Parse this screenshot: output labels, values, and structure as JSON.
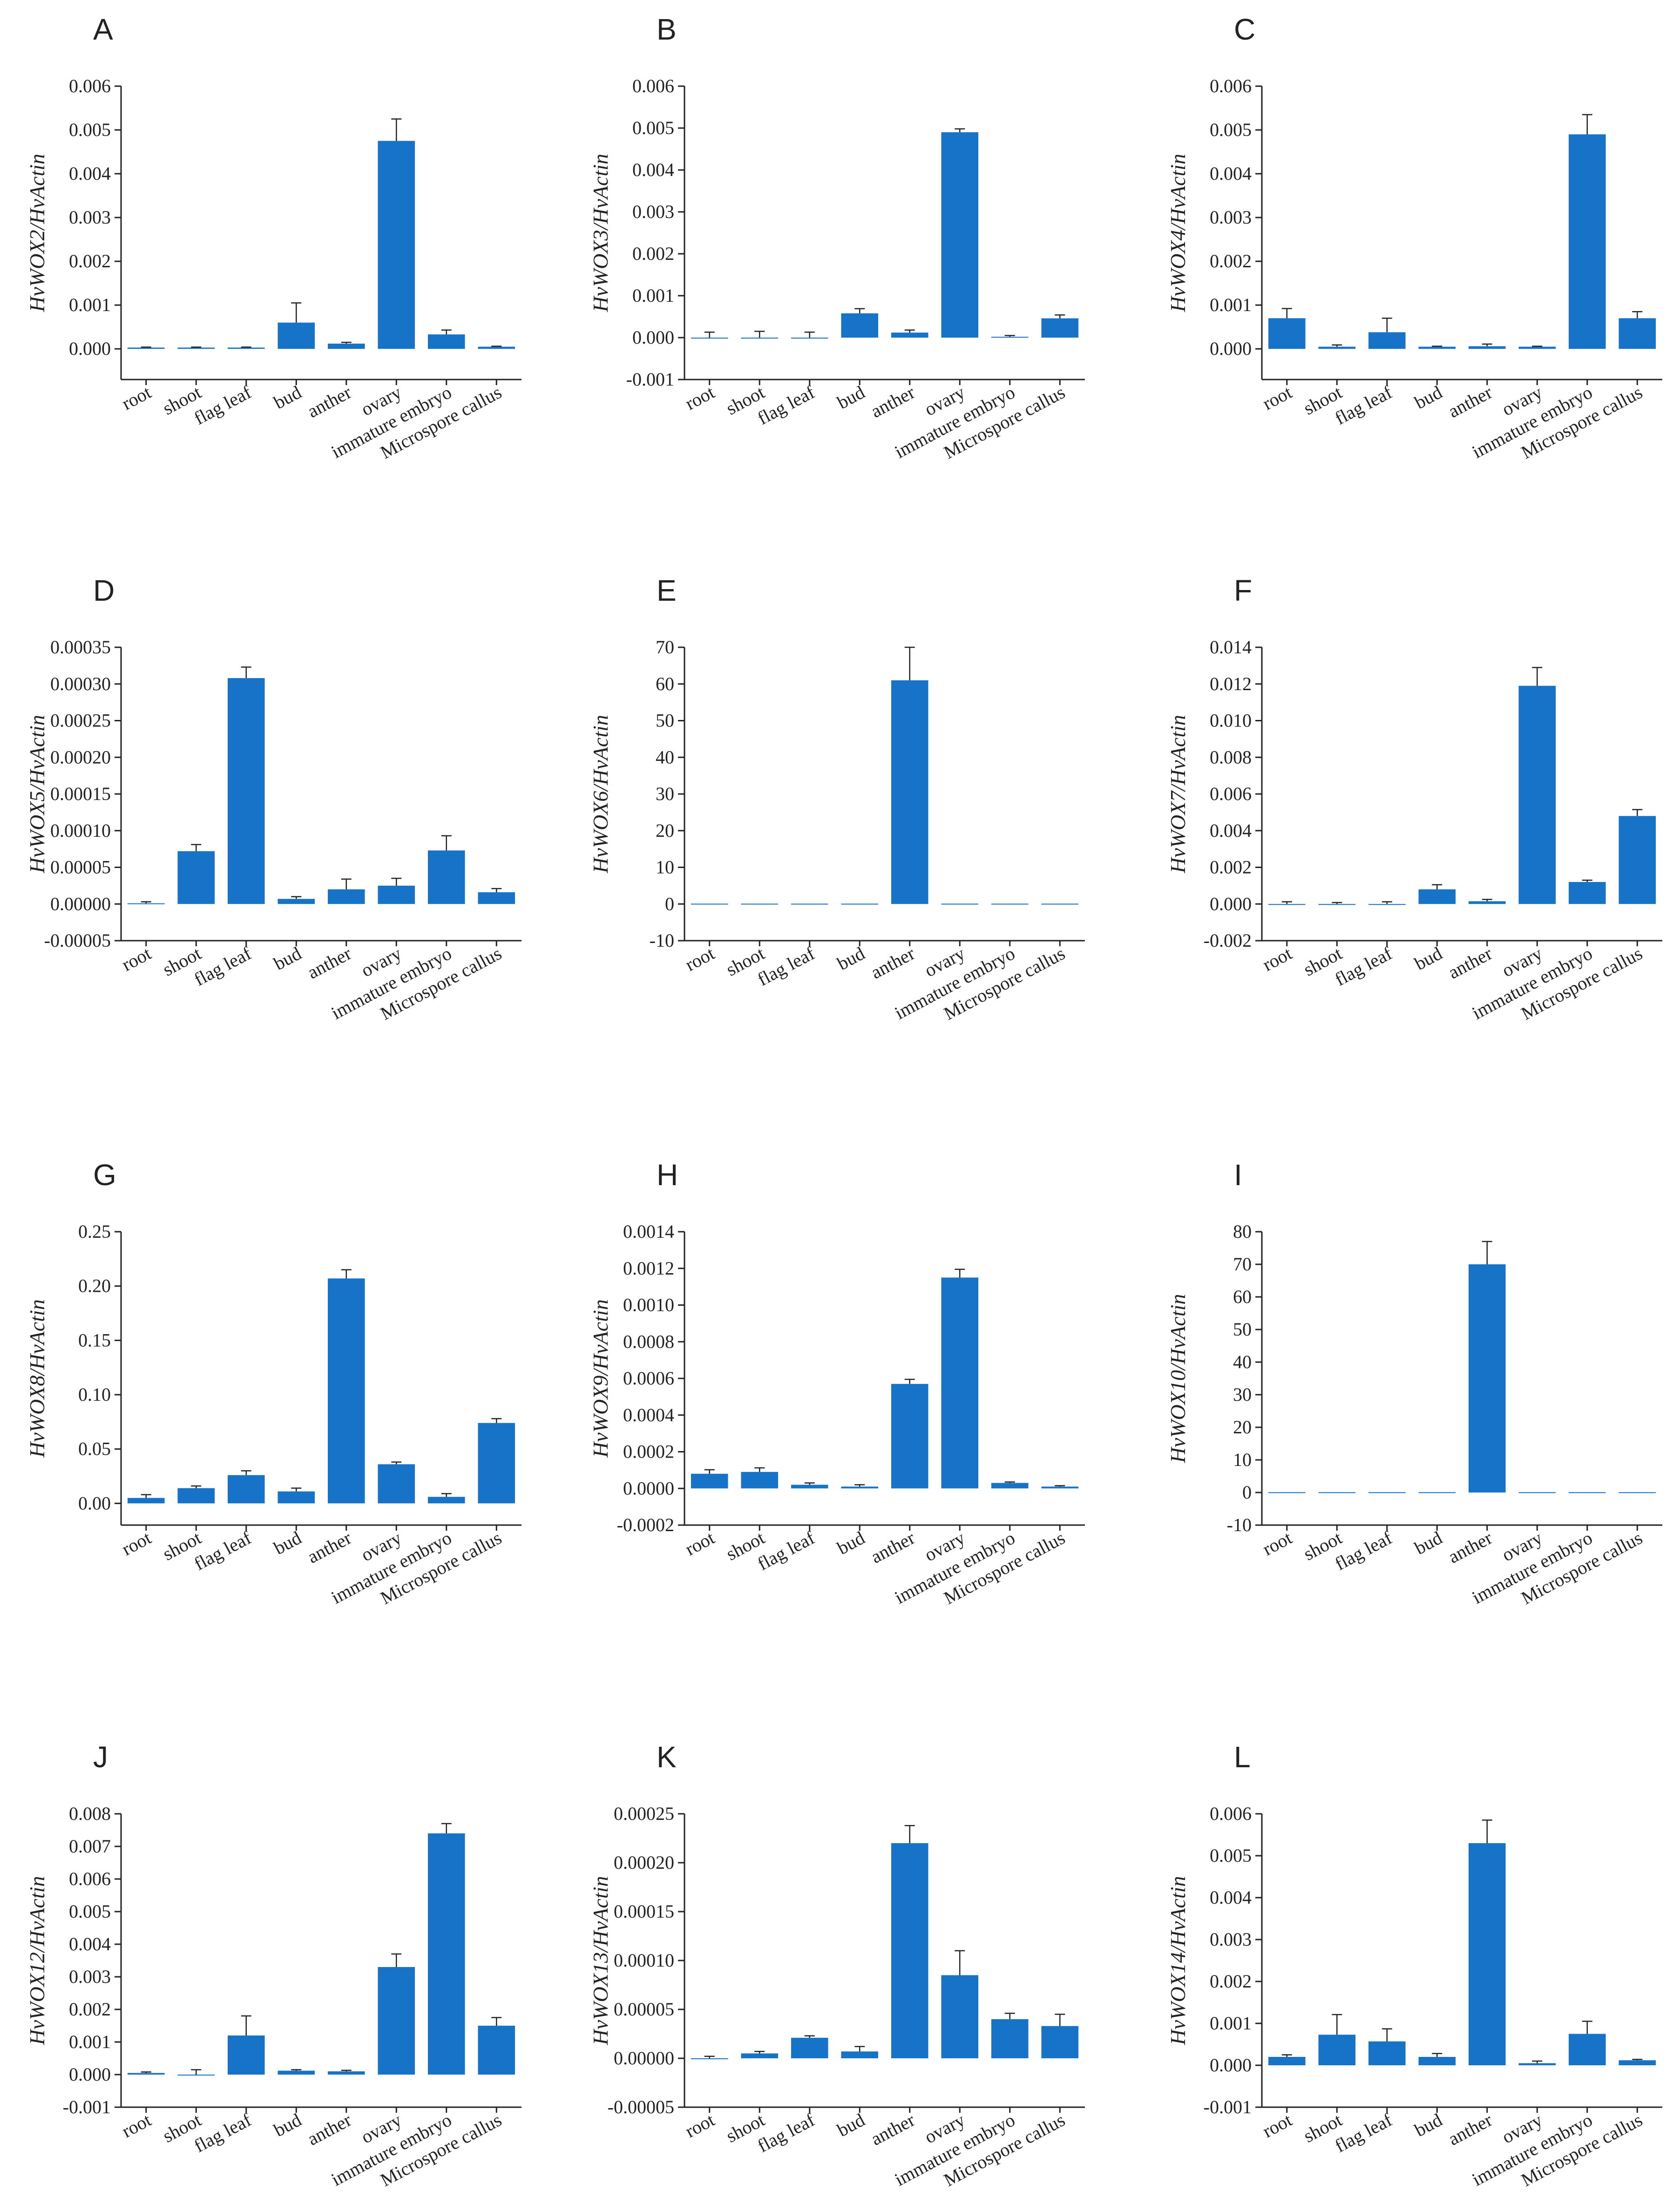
{
  "chart_data": [
    {
      "panel": "A",
      "type": "bar",
      "ylabel": "HvWOX2/HvActin",
      "categories": [
        "root",
        "shoot",
        "flag leaf",
        "bud",
        "anther",
        "ovary",
        "immature embryo",
        "Microspore callus"
      ],
      "values": [
        3e-05,
        3e-05,
        3e-05,
        0.0006,
        0.00012,
        0.00475,
        0.00033,
        5e-05
      ],
      "errors": [
        1e-05,
        1e-05,
        1e-05,
        0.00045,
        3e-05,
        0.0005,
        0.0001,
        1e-05
      ],
      "yticks": [
        0.0,
        0.001,
        0.002,
        0.003,
        0.004,
        0.005,
        0.006
      ],
      "tick_labels": [
        "0.000",
        "0.001",
        "0.002",
        "0.003",
        "0.004",
        "0.005",
        "0.006"
      ],
      "ylim": [
        -0.0007,
        0.006
      ]
    },
    {
      "panel": "B",
      "type": "bar",
      "ylabel": "HvWOX3/HvActin",
      "categories": [
        "root",
        "shoot",
        "flag leaf",
        "bud",
        "anther",
        "ovary",
        "immature embryo",
        "Microspore callus"
      ],
      "values": [
        0.0,
        0.0,
        0.0,
        0.00058,
        0.00012,
        0.0049,
        2e-05,
        0.00046
      ],
      "errors": [
        0.00013,
        0.00015,
        0.00013,
        0.00011,
        6e-05,
        8e-05,
        3e-05,
        8e-05
      ],
      "yticks": [
        -0.001,
        0.0,
        0.001,
        0.002,
        0.003,
        0.004,
        0.005,
        0.006
      ],
      "tick_labels": [
        "-0.001",
        "0.000",
        "0.001",
        "0.002",
        "0.003",
        "0.004",
        "0.005",
        "0.006"
      ],
      "ylim": [
        -0.001,
        0.006
      ]
    },
    {
      "panel": "C",
      "type": "bar",
      "ylabel": "HvWOX4/HvActin",
      "categories": [
        "root",
        "shoot",
        "flag leaf",
        "bud",
        "anther",
        "ovary",
        "immature embryo",
        "Microspore callus"
      ],
      "values": [
        0.0007,
        5e-05,
        0.00038,
        5e-05,
        6e-05,
        5e-05,
        0.0049,
        0.0007
      ],
      "errors": [
        0.00022,
        4e-05,
        0.00032,
        1e-05,
        5e-05,
        1e-05,
        0.00045,
        0.00015
      ],
      "yticks": [
        0.0,
        0.001,
        0.002,
        0.003,
        0.004,
        0.005,
        0.006
      ],
      "tick_labels": [
        "0.000",
        "0.001",
        "0.002",
        "0.003",
        "0.004",
        "0.005",
        "0.006"
      ],
      "ylim": [
        -0.0007,
        0.006
      ]
    },
    {
      "panel": "D",
      "type": "bar",
      "ylabel": "HvWOX5/HvActin",
      "categories": [
        "root",
        "shoot",
        "flag leaf",
        "bud",
        "anther",
        "ovary",
        "immature embryo",
        "Microspore callus"
      ],
      "values": [
        1e-06,
        7.2e-05,
        0.000308,
        7e-06,
        2e-05,
        2.5e-05,
        7.3e-05,
        1.6e-05
      ],
      "errors": [
        2e-06,
        9e-06,
        1.5e-05,
        3e-06,
        1.4e-05,
        1e-05,
        2e-05,
        5e-06
      ],
      "yticks": [
        -5e-05,
        0.0,
        5e-05,
        0.0001,
        0.00015,
        0.0002,
        0.00025,
        0.0003,
        0.00035
      ],
      "tick_labels": [
        "-0.00005",
        "0.00000",
        "0.00005",
        "0.00010",
        "0.00015",
        "0.00020",
        "0.00025",
        "0.00030",
        "0.00035"
      ],
      "ylim": [
        -5e-05,
        0.00035
      ]
    },
    {
      "panel": "E",
      "type": "bar",
      "ylabel": "HvWOX6/HvActin",
      "categories": [
        "root",
        "shoot",
        "flag leaf",
        "bud",
        "anther",
        "ovary",
        "immature embryo",
        "Microspore callus"
      ],
      "values": [
        0.1,
        0.1,
        0.1,
        0.1,
        61,
        0.1,
        0.1,
        0.1
      ],
      "errors": [
        0,
        0,
        0,
        0,
        9,
        0,
        0,
        0
      ],
      "yticks": [
        -10,
        0,
        10,
        20,
        30,
        40,
        50,
        60,
        70
      ],
      "tick_labels": [
        "-10",
        "0",
        "10",
        "20",
        "30",
        "40",
        "50",
        "60",
        "70"
      ],
      "ylim": [
        -10,
        70
      ]
    },
    {
      "panel": "F",
      "type": "bar",
      "ylabel": "HvWOX7/HvActin",
      "categories": [
        "root",
        "shoot",
        "flag leaf",
        "bud",
        "anther",
        "ovary",
        "immature embryo",
        "Microspore callus"
      ],
      "values": [
        0.0,
        0.0,
        0.0,
        0.0008,
        0.00015,
        0.0119,
        0.0012,
        0.0048
      ],
      "errors": [
        0.00012,
        8e-05,
        0.00012,
        0.00025,
        0.0001,
        0.001,
        0.0001,
        0.00035
      ],
      "yticks": [
        -0.002,
        0.0,
        0.002,
        0.004,
        0.006,
        0.008,
        0.01,
        0.012,
        0.014
      ],
      "tick_labels": [
        "-0.002",
        "0.000",
        "0.002",
        "0.004",
        "0.006",
        "0.008",
        "0.010",
        "0.012",
        "0.014"
      ],
      "ylim": [
        -0.002,
        0.014
      ]
    },
    {
      "panel": "G",
      "type": "bar",
      "ylabel": "HvWOX8/HvActin",
      "categories": [
        "root",
        "shoot",
        "flag leaf",
        "bud",
        "anther",
        "ovary",
        "immature embryo",
        "Microspore callus"
      ],
      "values": [
        0.005,
        0.014,
        0.026,
        0.011,
        0.207,
        0.036,
        0.006,
        0.074
      ],
      "errors": [
        0.003,
        0.002,
        0.004,
        0.003,
        0.008,
        0.002,
        0.003,
        0.004
      ],
      "yticks": [
        0.0,
        0.05,
        0.1,
        0.15,
        0.2,
        0.25
      ],
      "tick_labels": [
        "0.00",
        "0.05",
        "0.10",
        "0.15",
        "0.20",
        "0.25"
      ],
      "ylim": [
        -0.02,
        0.25
      ]
    },
    {
      "panel": "H",
      "type": "bar",
      "ylabel": "HvWOX9/HvActin",
      "categories": [
        "root",
        "shoot",
        "flag leaf",
        "bud",
        "anther",
        "ovary",
        "immature embryo",
        "Microspore callus"
      ],
      "values": [
        8e-05,
        9e-05,
        2e-05,
        1e-05,
        0.00057,
        0.00115,
        3e-05,
        1e-05
      ],
      "errors": [
        2.2e-05,
        2.2e-05,
        1e-05,
        1e-05,
        2.5e-05,
        4.5e-05,
        5e-06,
        5e-06
      ],
      "yticks": [
        -0.0002,
        0.0,
        0.0002,
        0.0004,
        0.0006,
        0.0008,
        0.001,
        0.0012,
        0.0014
      ],
      "tick_labels": [
        "-0.0002",
        "0.0000",
        "0.0002",
        "0.0004",
        "0.0006",
        "0.0008",
        "0.0010",
        "0.0012",
        "0.0014"
      ],
      "ylim": [
        -0.0002,
        0.0014
      ]
    },
    {
      "panel": "I",
      "type": "bar",
      "ylabel": "HvWOX10/HvActin",
      "categories": [
        "root",
        "shoot",
        "flag leaf",
        "bud",
        "anther",
        "ovary",
        "immature embryo",
        "Microspore callus"
      ],
      "values": [
        0.1,
        0.1,
        0.1,
        0.1,
        70,
        0.1,
        0.1,
        0.1
      ],
      "errors": [
        0,
        0,
        0,
        0,
        7,
        0,
        0,
        0
      ],
      "yticks": [
        -10,
        0,
        10,
        20,
        30,
        40,
        50,
        60,
        70,
        80
      ],
      "tick_labels": [
        "-10",
        "0",
        "10",
        "20",
        "30",
        "40",
        "50",
        "60",
        "70",
        "80"
      ],
      "ylim": [
        -10,
        80
      ]
    },
    {
      "panel": "J",
      "type": "bar",
      "ylabel": "HvWOX12/HvActin",
      "categories": [
        "root",
        "shoot",
        "flag leaf",
        "bud",
        "anther",
        "ovary",
        "immature embryo",
        "Microspore callus"
      ],
      "values": [
        5e-05,
        0.0,
        0.0012,
        0.00012,
        0.0001,
        0.0033,
        0.0074,
        0.0015
      ],
      "errors": [
        3e-05,
        0.00015,
        0.0006,
        3e-05,
        3e-05,
        0.0004,
        0.0003,
        0.00025
      ],
      "yticks": [
        -0.001,
        0.0,
        0.001,
        0.002,
        0.003,
        0.004,
        0.005,
        0.006,
        0.007,
        0.008
      ],
      "tick_labels": [
        "-0.001",
        "0.000",
        "0.001",
        "0.002",
        "0.003",
        "0.004",
        "0.005",
        "0.006",
        "0.007",
        "0.008"
      ],
      "ylim": [
        -0.001,
        0.008
      ]
    },
    {
      "panel": "K",
      "type": "bar",
      "ylabel": "HvWOX13/HvActin",
      "categories": [
        "root",
        "shoot",
        "flag leaf",
        "bud",
        "anther",
        "ovary",
        "immature embryo",
        "Microspore callus"
      ],
      "values": [
        0.0,
        5e-06,
        2.1e-05,
        7e-06,
        0.00022,
        8.5e-05,
        4e-05,
        3.3e-05
      ],
      "errors": [
        2e-06,
        2e-06,
        2e-06,
        5e-06,
        1.8e-05,
        2.5e-05,
        6e-06,
        1.2e-05
      ],
      "yticks": [
        -5e-05,
        0.0,
        5e-05,
        0.0001,
        0.00015,
        0.0002,
        0.00025
      ],
      "tick_labels": [
        "-0.00005",
        "0.00000",
        "0.00005",
        "0.00010",
        "0.00015",
        "0.00020",
        "0.00025"
      ],
      "ylim": [
        -5e-05,
        0.00025
      ]
    },
    {
      "panel": "L",
      "type": "bar",
      "ylabel": "HvWOX14/HvActin",
      "categories": [
        "root",
        "shoot",
        "flag leaf",
        "bud",
        "anther",
        "ovary",
        "immature embryo",
        "Microspore callus"
      ],
      "values": [
        0.0002,
        0.00073,
        0.00057,
        0.0002,
        0.0053,
        5e-05,
        0.00075,
        0.00012
      ],
      "errors": [
        5e-05,
        0.00048,
        0.0003,
        8e-05,
        0.00055,
        5e-05,
        0.0003,
        2e-05
      ],
      "yticks": [
        -0.001,
        0.0,
        0.001,
        0.002,
        0.003,
        0.004,
        0.005,
        0.006
      ],
      "tick_labels": [
        "-0.001",
        "0.000",
        "0.001",
        "0.002",
        "0.003",
        "0.004",
        "0.005",
        "0.006"
      ],
      "ylim": [
        -0.001,
        0.006
      ]
    }
  ],
  "bar_color": "#1673c8",
  "axis_color": "#222222"
}
